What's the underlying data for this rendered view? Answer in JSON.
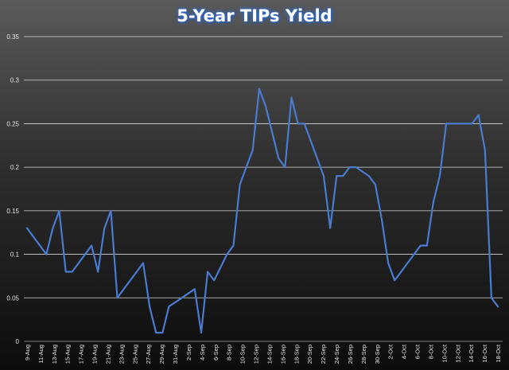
{
  "chart_data": {
    "type": "line",
    "title": "5-Year TIPs Yield",
    "xlabel": "",
    "ylabel": "",
    "ylim": [
      0,
      0.35
    ],
    "y_ticks": [
      "0",
      "0.05",
      "0.1",
      "0.15",
      "0.2",
      "0.25",
      "0.3",
      "0.35"
    ],
    "grid": true,
    "legend": "none",
    "line_color": "#4a7bd0",
    "x_tick_labels": [
      "9-Aug",
      "11-Aug",
      "13-Aug",
      "15-Aug",
      "17-Aug",
      "19-Aug",
      "21-Aug",
      "23-Aug",
      "25-Aug",
      "27-Aug",
      "29-Aug",
      "31-Aug",
      "2-Sep",
      "4-Sep",
      "6-Sep",
      "8-Sep",
      "10-Sep",
      "12-Sep",
      "14-Sep",
      "16-Sep",
      "18-Sep",
      "20-Sep",
      "22-Sep",
      "24-Sep",
      "26-Sep",
      "28-Sep",
      "30-Sep",
      "2-Oct",
      "4-Oct",
      "6-Oct",
      "8-Oct",
      "10-Oct",
      "12-Oct",
      "14-Oct",
      "16-Oct",
      "18-Oct"
    ],
    "series": [
      {
        "values": [
          0.13,
          0.12,
          0.11,
          0.1,
          0.13,
          0.15,
          0.08,
          0.08,
          0.09,
          0.1,
          0.11,
          0.08,
          0.13,
          0.15,
          0.05,
          0.06,
          0.07,
          0.08,
          0.09,
          0.04,
          0.01,
          0.01,
          0.04,
          0.045,
          0.05,
          0.055,
          0.06,
          0.01,
          0.08,
          0.07,
          0.085,
          0.1,
          0.11,
          0.18,
          0.2,
          0.22,
          0.29,
          0.27,
          0.24,
          0.21,
          0.2,
          0.28,
          0.25,
          0.25,
          0.23,
          0.21,
          0.19,
          0.13,
          0.19,
          0.19,
          0.2,
          0.2,
          0.195,
          0.19,
          0.18,
          0.14,
          0.09,
          0.07,
          0.08,
          0.09,
          0.1,
          0.11,
          0.11,
          0.16,
          0.19,
          0.25,
          0.25,
          0.25,
          0.25,
          0.25,
          0.26,
          0.22,
          0.05,
          0.04
        ]
      }
    ]
  }
}
